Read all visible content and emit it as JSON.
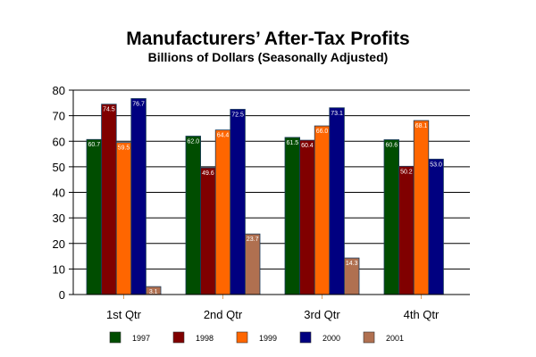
{
  "chart_data": {
    "type": "bar",
    "title": "Manufacturers’ After-Tax Profits",
    "subtitle": "Billions of Dollars (Seasonally Adjusted)",
    "xlabel": "",
    "ylabel": "",
    "ylim": [
      0,
      80
    ],
    "yticks": [
      0,
      10,
      20,
      30,
      40,
      50,
      60,
      70,
      80
    ],
    "grid": true,
    "legend_position": "bottom",
    "categories": [
      "1st Qtr",
      "2nd Qtr",
      "3rd Qtr",
      "4th Qtr"
    ],
    "series": [
      {
        "name": "1997",
        "color": "#004d00",
        "values": [
          60.7,
          62.0,
          61.5,
          60.6
        ],
        "labels": [
          "60.7",
          "62.0",
          "61.5",
          "60.6"
        ]
      },
      {
        "name": "1998",
        "color": "#800000",
        "values": [
          74.5,
          49.6,
          60.4,
          50.2
        ],
        "labels": [
          "74.5",
          "49.6",
          "60.4",
          "50.2"
        ]
      },
      {
        "name": "1999",
        "color": "#ff6600",
        "values": [
          59.5,
          64.4,
          66.0,
          68.1
        ],
        "labels": [
          "59.5",
          "64.4",
          "66.0",
          "68.1"
        ]
      },
      {
        "name": "2000",
        "color": "#000080",
        "values": [
          76.7,
          72.5,
          73.1,
          53.0
        ],
        "labels": [
          "76.7",
          "72.5",
          "73.1",
          "53.0"
        ]
      },
      {
        "name": "2001",
        "color": "#b07050",
        "values": [
          3.1,
          23.7,
          14.3,
          null
        ],
        "labels": [
          "3.1",
          "23.7",
          "14.3",
          null
        ]
      }
    ]
  }
}
